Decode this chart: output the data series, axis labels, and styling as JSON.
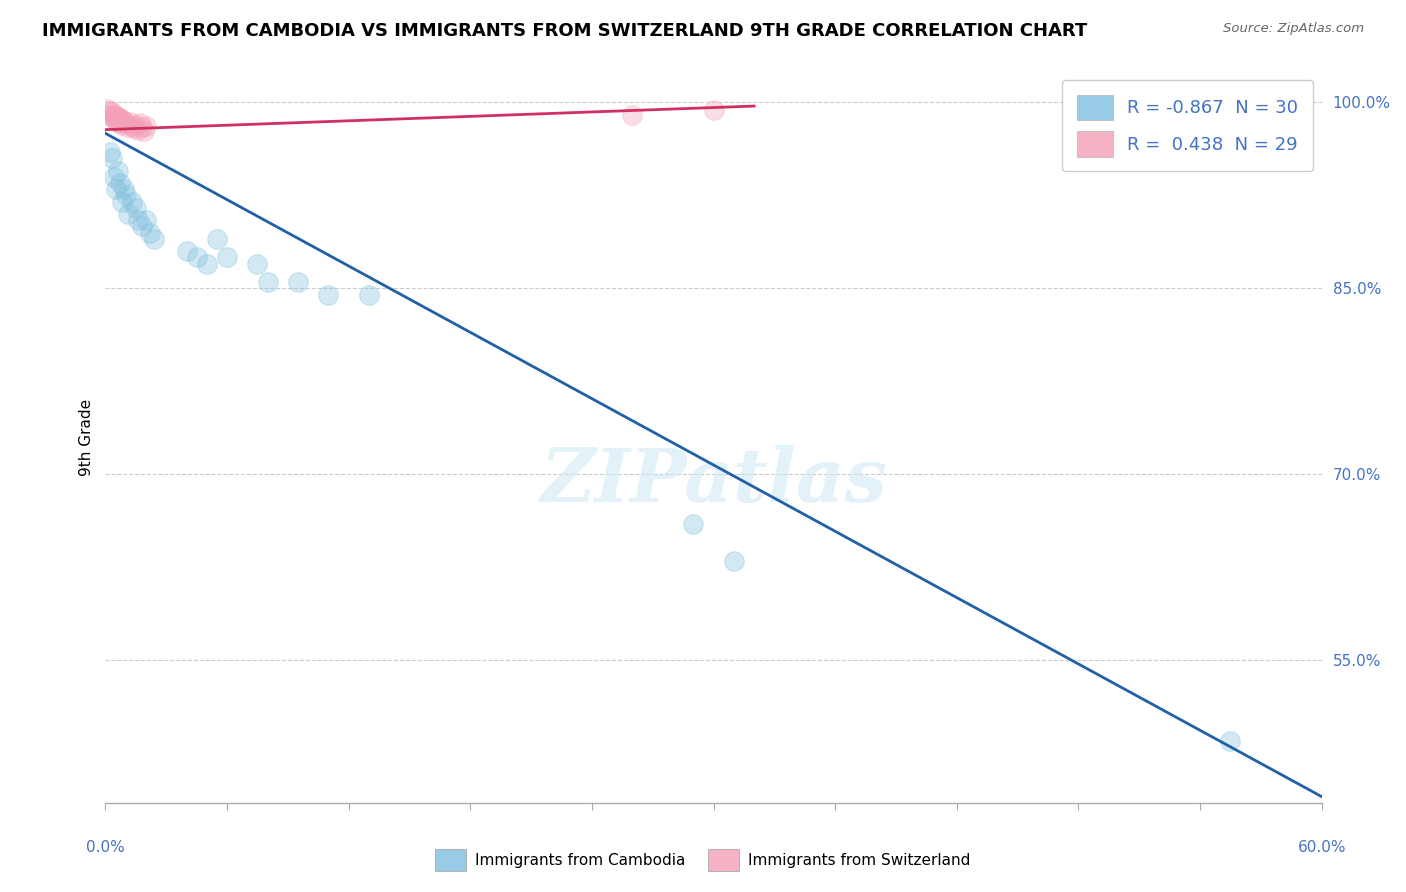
{
  "title": "IMMIGRANTS FROM CAMBODIA VS IMMIGRANTS FROM SWITZERLAND 9TH GRADE CORRELATION CHART",
  "source": "Source: ZipAtlas.com",
  "ylabel": "9th Grade",
  "x_min": 0.0,
  "x_max": 0.6,
  "y_min": 0.435,
  "y_max": 1.025,
  "y_ticks": [
    0.55,
    0.7,
    0.85,
    1.0
  ],
  "y_tick_labels": [
    "55.0%",
    "70.0%",
    "85.0%",
    "100.0%"
  ],
  "legend_r_blue": "R = -0.867",
  "legend_n_blue": "N = 30",
  "legend_r_pink": "R =  0.438",
  "legend_n_pink": "N = 29",
  "legend_bottom_blue": "Immigrants from Cambodia",
  "legend_bottom_pink": "Immigrants from Switzerland",
  "blue_scatter": [
    [
      0.002,
      0.96
    ],
    [
      0.003,
      0.955
    ],
    [
      0.004,
      0.94
    ],
    [
      0.005,
      0.93
    ],
    [
      0.006,
      0.945
    ],
    [
      0.007,
      0.935
    ],
    [
      0.008,
      0.92
    ],
    [
      0.009,
      0.93
    ],
    [
      0.01,
      0.925
    ],
    [
      0.011,
      0.91
    ],
    [
      0.013,
      0.92
    ],
    [
      0.015,
      0.915
    ],
    [
      0.016,
      0.905
    ],
    [
      0.018,
      0.9
    ],
    [
      0.02,
      0.905
    ],
    [
      0.022,
      0.895
    ],
    [
      0.024,
      0.89
    ],
    [
      0.04,
      0.88
    ],
    [
      0.045,
      0.875
    ],
    [
      0.05,
      0.87
    ],
    [
      0.055,
      0.89
    ],
    [
      0.06,
      0.875
    ],
    [
      0.075,
      0.87
    ],
    [
      0.08,
      0.855
    ],
    [
      0.095,
      0.855
    ],
    [
      0.11,
      0.845
    ],
    [
      0.13,
      0.845
    ],
    [
      0.29,
      0.66
    ],
    [
      0.31,
      0.63
    ],
    [
      0.555,
      0.485
    ]
  ],
  "pink_scatter": [
    [
      0.001,
      0.995
    ],
    [
      0.002,
      0.993
    ],
    [
      0.002,
      0.99
    ],
    [
      0.003,
      0.992
    ],
    [
      0.003,
      0.988
    ],
    [
      0.004,
      0.99
    ],
    [
      0.004,
      0.987
    ],
    [
      0.005,
      0.989
    ],
    [
      0.005,
      0.985
    ],
    [
      0.006,
      0.988
    ],
    [
      0.006,
      0.984
    ],
    [
      0.007,
      0.987
    ],
    [
      0.007,
      0.983
    ],
    [
      0.008,
      0.986
    ],
    [
      0.008,
      0.982
    ],
    [
      0.009,
      0.985
    ],
    [
      0.01,
      0.983
    ],
    [
      0.011,
      0.98
    ],
    [
      0.012,
      0.984
    ],
    [
      0.013,
      0.981
    ],
    [
      0.014,
      0.979
    ],
    [
      0.015,
      0.982
    ],
    [
      0.016,
      0.978
    ],
    [
      0.017,
      0.983
    ],
    [
      0.018,
      0.98
    ],
    [
      0.019,
      0.977
    ],
    [
      0.02,
      0.981
    ],
    [
      0.26,
      0.99
    ],
    [
      0.3,
      0.994
    ]
  ],
  "blue_line_x": [
    0.0,
    0.6
  ],
  "blue_line_y": [
    0.975,
    0.44
  ],
  "pink_line_x": [
    0.0,
    0.32
  ],
  "pink_line_y": [
    0.978,
    0.997
  ],
  "scatter_size": 200,
  "scatter_alpha": 0.35,
  "blue_color": "#7fbfdf",
  "pink_color": "#f4a0b8",
  "blue_edge_color": "#7fbfdf",
  "pink_edge_color": "#f4a0b8",
  "blue_line_color": "#2060a8",
  "pink_line_color": "#d03060",
  "watermark": "ZIPatlas",
  "background_color": "#ffffff",
  "grid_color": "#cccccc",
  "accent_color": "#4472c4",
  "title_color": "#000000",
  "source_color": "#666666"
}
